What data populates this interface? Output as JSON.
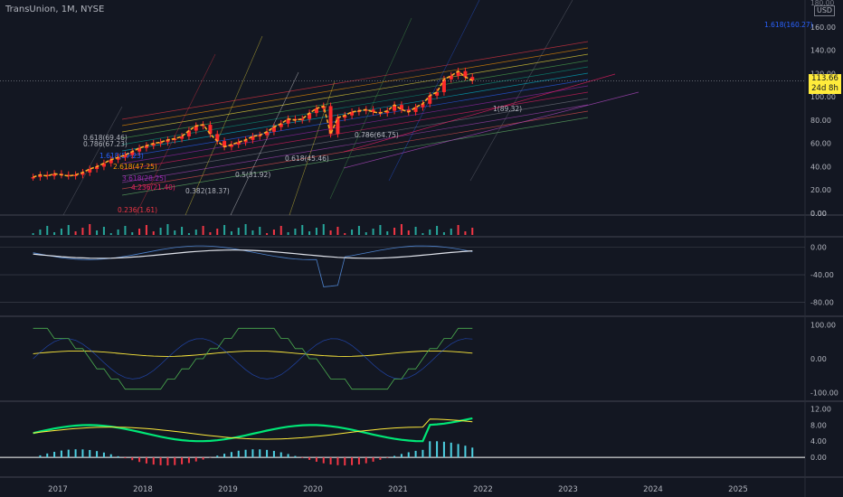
{
  "header": {
    "symbol": "TransUnion",
    "interval": "1M",
    "exchange": "NYSE",
    "currency": "USD"
  },
  "price_tag": {
    "price": "113.66",
    "countdown": "24d 8h"
  },
  "colors": {
    "bg": "#131722",
    "up": "#26a69a",
    "candle": "#ff2a2a",
    "ma": "#ffa726",
    "grid": "#2a2e39",
    "axis_text": "#b2b5be",
    "tag": "#ffeb3b"
  },
  "chart_data": [
    {
      "type": "line",
      "panel": "price",
      "x": [
        "2016-09",
        "2016-10",
        "2016-11",
        "2016-12",
        "2017-01",
        "2017-02",
        "2017-03",
        "2017-04",
        "2017-05",
        "2017-06",
        "2017-07",
        "2017-08",
        "2017-09",
        "2017-10",
        "2017-11",
        "2017-12",
        "2018-01",
        "2018-02",
        "2018-03",
        "2018-04",
        "2018-05",
        "2018-06",
        "2018-07",
        "2018-08",
        "2018-09",
        "2018-10",
        "2018-11",
        "2018-12",
        "2019-01",
        "2019-02",
        "2019-03",
        "2019-04",
        "2019-05",
        "2019-06",
        "2019-07",
        "2019-08",
        "2019-09",
        "2019-10",
        "2019-11",
        "2019-12",
        "2020-01",
        "2020-02",
        "2020-03",
        "2020-04",
        "2020-05",
        "2020-06",
        "2020-07",
        "2020-08",
        "2020-09",
        "2020-10",
        "2020-11",
        "2020-12",
        "2021-01",
        "2021-02",
        "2021-03",
        "2021-04",
        "2021-05",
        "2021-06",
        "2021-07",
        "2021-08",
        "2021-09",
        "2021-10",
        "2021-11"
      ],
      "series": [
        {
          "values": [
            31,
            33,
            32,
            34,
            33,
            32,
            33,
            35,
            38,
            40,
            43,
            46,
            48,
            50,
            53,
            56,
            58,
            60,
            61,
            63,
            64,
            66,
            71,
            75,
            76,
            68,
            62,
            57,
            59,
            61,
            63,
            66,
            67,
            70,
            74,
            77,
            81,
            80,
            81,
            86,
            90,
            92,
            68,
            82,
            84,
            87,
            88,
            89,
            87,
            86,
            88,
            93,
            89,
            87,
            91,
            94,
            101,
            104,
            115,
            118,
            122,
            117,
            114
          ]
        }
      ],
      "y_ticks": [
        "0.00",
        "20.00",
        "40.00",
        "60.00",
        "80.00",
        "100.00",
        "120.00",
        "140.00",
        "160.00"
      ],
      "y_top_label": "180.00",
      "x_ticks": [
        "2017",
        "2018",
        "2019",
        "2020",
        "2021",
        "2022",
        "2023",
        "2024",
        "2025"
      ],
      "ylim": [
        0,
        180
      ],
      "fib_labels": [
        "0.236(1.61)",
        "0.382(18.37)",
        "0.5(31.92)",
        "0.618(45.46)",
        "0.786(64.75)",
        "1(89.32)",
        "1.618(160.27)",
        "1.618(57.23)",
        "2.618(47.25)",
        "3.618(28.25)",
        "4.236(21.40)",
        "0.786(67.23)",
        "0.618(69.46)"
      ]
    },
    {
      "type": "bar",
      "panel": "volume-osc",
      "y_ticks": [
        "0.00"
      ]
    },
    {
      "type": "line",
      "panel": "momentum",
      "y_ticks": [
        "0.00",
        "-40.00",
        "-80.00"
      ],
      "ylim": [
        -95,
        10
      ]
    },
    {
      "type": "line",
      "panel": "stoch",
      "y_ticks": [
        "100.00",
        "0.00",
        "-100.00"
      ],
      "ylim": [
        -115,
        115
      ]
    },
    {
      "type": "line",
      "panel": "macd",
      "y_ticks": [
        "12.00",
        "8.00",
        "4.00",
        "0.00"
      ],
      "ylim": [
        -4,
        13
      ]
    }
  ]
}
